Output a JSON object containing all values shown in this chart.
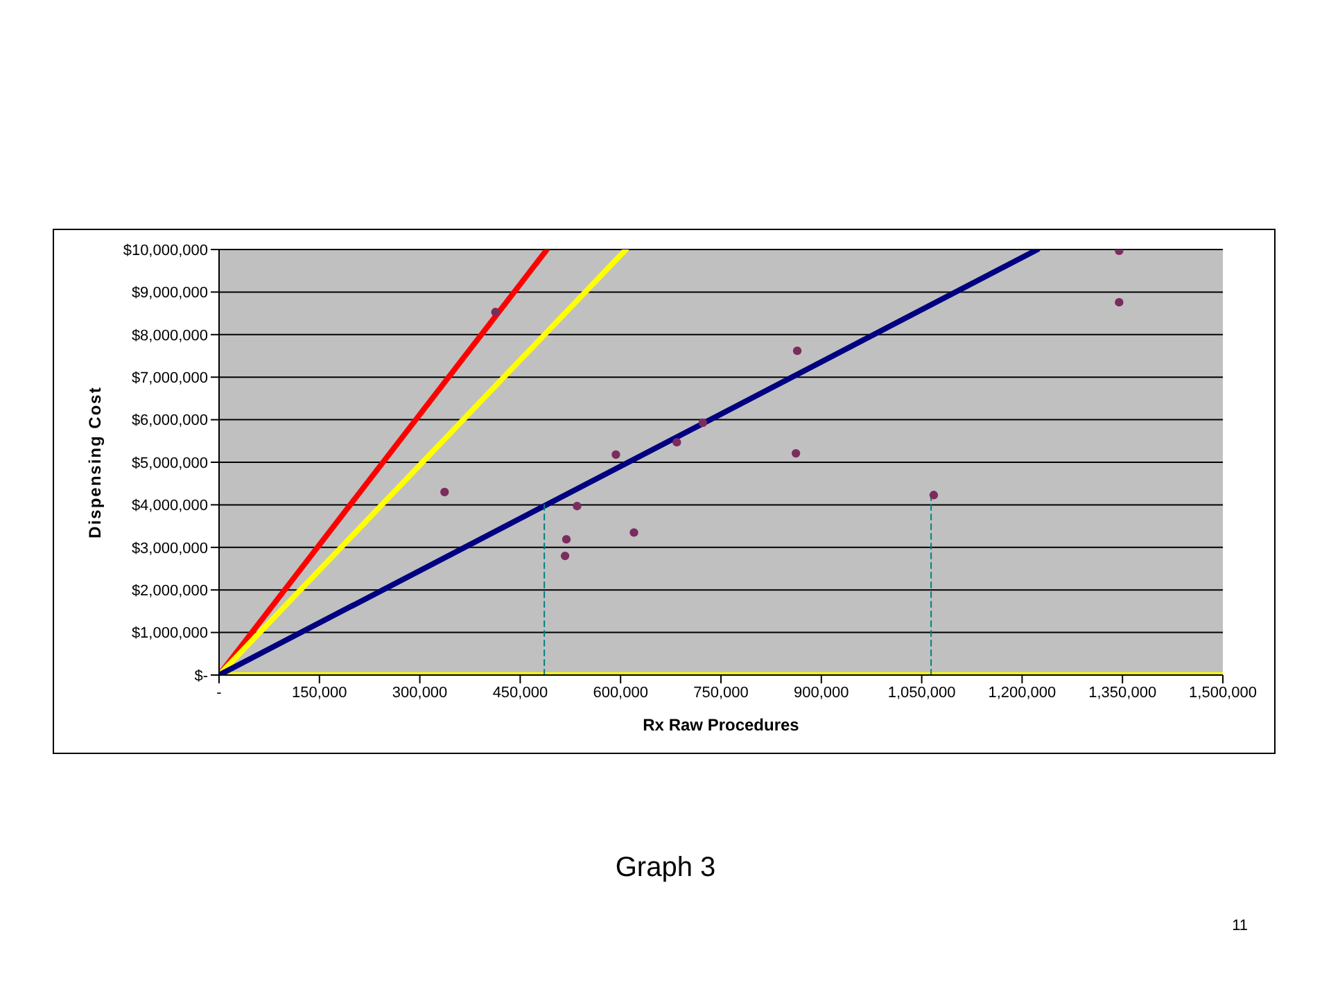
{
  "chart_data": {
    "type": "scatter",
    "title": "Graph 3",
    "xlabel": "Rx Raw Procedures",
    "ylabel": "Dispensing Cost",
    "annotations": [
      "11"
    ],
    "xlim": [
      0,
      1500000
    ],
    "ylim": [
      0,
      10000000
    ],
    "xticks": [
      {
        "value": 0,
        "label": "-"
      },
      {
        "value": 150000,
        "label": "150,000"
      },
      {
        "value": 300000,
        "label": "300,000"
      },
      {
        "value": 450000,
        "label": "450,000"
      },
      {
        "value": 600000,
        "label": "600,000"
      },
      {
        "value": 750000,
        "label": "750,000"
      },
      {
        "value": 900000,
        "label": "900,000"
      },
      {
        "value": 1050000,
        "label": "1,050,000"
      },
      {
        "value": 1200000,
        "label": "1,200,000"
      },
      {
        "value": 1350000,
        "label": "1,350,000"
      },
      {
        "value": 1500000,
        "label": "1,500,000"
      }
    ],
    "yticks": [
      {
        "value": 0,
        "label": "$-"
      },
      {
        "value": 1000000,
        "label": "$1,000,000"
      },
      {
        "value": 2000000,
        "label": "$2,000,000"
      },
      {
        "value": 3000000,
        "label": "$3,000,000"
      },
      {
        "value": 4000000,
        "label": "$4,000,000"
      },
      {
        "value": 5000000,
        "label": "$5,000,000"
      },
      {
        "value": 6000000,
        "label": "$6,000,000"
      },
      {
        "value": 7000000,
        "label": "$7,000,000"
      },
      {
        "value": 8000000,
        "label": "$8,000,000"
      },
      {
        "value": 9000000,
        "label": "$9,000,000"
      },
      {
        "value": 10000000,
        "label": "$10,000,000"
      }
    ],
    "grid": "y",
    "marker": "circle",
    "series": [
      {
        "type": "line",
        "color": "#ffff00",
        "marker": "none",
        "x": [
          0,
          1500000
        ],
        "values": [
          0,
          0
        ]
      },
      {
        "type": "line",
        "color": "#ff0000",
        "marker": "none",
        "x": [
          0,
          490000
        ],
        "values": [
          0,
          10000000
        ]
      },
      {
        "type": "line",
        "color": "#ffff00",
        "marker": "none",
        "x": [
          0,
          608000
        ],
        "values": [
          0,
          10000000
        ]
      },
      {
        "type": "line",
        "color": "#000080",
        "marker": "none",
        "x": [
          0,
          1223000
        ],
        "values": [
          0,
          10000000
        ]
      },
      {
        "type": "line",
        "color": "#008080",
        "marker": "none",
        "line_style": "dashed",
        "x": [
          486000,
          486000
        ],
        "values": [
          0,
          4000000
        ]
      },
      {
        "type": "line",
        "color": "#008080",
        "marker": "none",
        "line_style": "dashed",
        "x": [
          1064000,
          1064000
        ],
        "values": [
          0,
          4230000
        ]
      },
      {
        "color": "#7b2c5e",
        "x": [
          337000,
          413000,
          517000,
          519000,
          535000,
          593000,
          620000,
          684000,
          723000,
          864000,
          862000,
          1068000,
          1345000,
          1345000
        ],
        "values": [
          4300000,
          8530000,
          2800000,
          3190000,
          3970000,
          5180000,
          3350000,
          5470000,
          5930000,
          7620000,
          5210000,
          4230000,
          9970000,
          8760000
        ]
      }
    ]
  }
}
